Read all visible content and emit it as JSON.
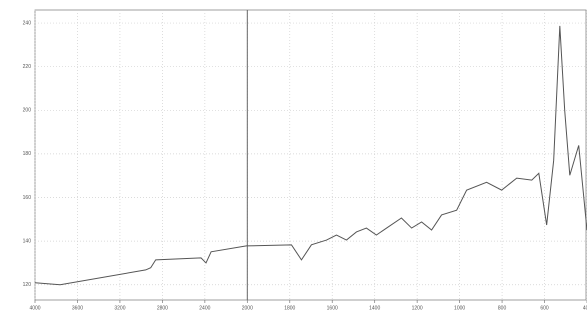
{
  "chart_data": {
    "type": "line",
    "x": [
      4000,
      3763,
      2957,
      2910,
      2863,
      2436,
      2389,
      2341,
      2009,
      1792,
      1745,
      1698,
      1627,
      1580,
      1533,
      1486,
      1439,
      1392,
      1344,
      1274,
      1226,
      1179,
      1132,
      1085,
      1014,
      967,
      873,
      802,
      731,
      660,
      627,
      590,
      557,
      528,
      505,
      481,
      439,
      400
    ],
    "series": [
      {
        "color": "#555555",
        "values": [
          120.9,
          120,
          126.8,
          127.8,
          131.4,
          132.3,
          130,
          135.1,
          137.8,
          138.3,
          131.4,
          138.3,
          140.5,
          142.8,
          140.5,
          144.2,
          146,
          142.8,
          146,
          150.6,
          146,
          148.8,
          145.1,
          152,
          154.2,
          163.4,
          167,
          163.4,
          168.9,
          168,
          171.1,
          147.4,
          177,
          238.7,
          199.9,
          170.2,
          183.9,
          145
        ]
      }
    ],
    "xlim": [
      4000,
      400
    ],
    "x_break": 2000,
    "x_break_zoom": 2,
    "xticks": [
      4000,
      3600,
      3200,
      2800,
      2400,
      2000,
      1800,
      1600,
      1400,
      1200,
      1000,
      800,
      600,
      400
    ],
    "ylim": [
      113,
      246
    ],
    "yticks": [
      120,
      140,
      160,
      180,
      200,
      220,
      240
    ],
    "grid": true
  }
}
